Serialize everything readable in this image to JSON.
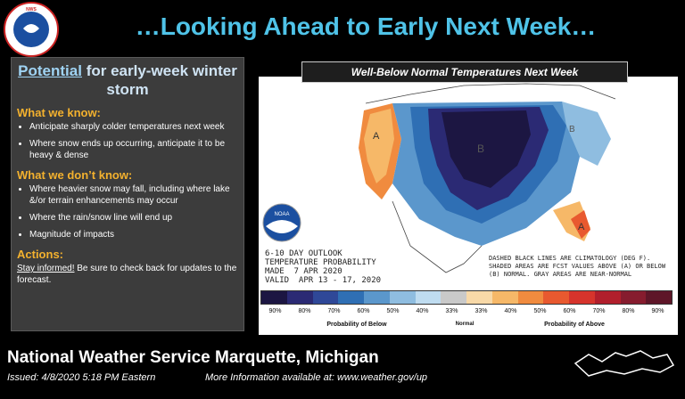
{
  "header": {
    "title": "…Looking Ahead to Early Next Week…"
  },
  "left_panel": {
    "title_underlined": "Potential",
    "title_rest": " for early-week winter storm",
    "know_heading": "What we know:",
    "know_items": [
      "Anticipate sharply colder temperatures next week",
      "Where snow ends up occurring, anticipate it to be heavy & dense"
    ],
    "dont_know_heading": "What we don’t know:",
    "dont_know_items": [
      "Where heavier snow may fall, including where lake &/or terrain enhancements may occur",
      "Where the rain/snow line will end up",
      "Magnitude of impacts"
    ],
    "actions_heading": "Actions:",
    "actions_link": "Stay informed!",
    "actions_text": " Be sure to check back for updates to the forecast."
  },
  "map": {
    "header": "Well-Below Normal Temperatures Next Week",
    "outlook_lines": [
      "6-10 DAY OUTLOOK",
      "TEMPERATURE PROBABILITY",
      "MADE  7 APR 2020",
      "VALID  APR 13 - 17, 2020"
    ],
    "legend_note": "Dashed black lines are climatology (deg F). Shaded areas are fcst values above (A) or below (B) normal. Gray areas are near-normal",
    "region_labels": [
      "B",
      "A",
      "A",
      "B"
    ],
    "colorbar_colors": [
      "#1c1642",
      "#2b2a74",
      "#2f4898",
      "#2f6fb4",
      "#5b97cc",
      "#8fbde0",
      "#bfdcf0",
      "#c9c9c9",
      "#f8d9a8",
      "#f6b868",
      "#f08b3f",
      "#e8592f",
      "#d6342c",
      "#b11f2c",
      "#861c2e",
      "#5e1628"
    ],
    "colorbar_labels": [
      "90%",
      "80%",
      "70%",
      "60%",
      "50%",
      "40%",
      "33%",
      "33%",
      "40%",
      "50%",
      "60%",
      "70%",
      "80%",
      "90%"
    ],
    "prob_below": "Probability of Below",
    "normal": "Normal",
    "prob_above": "Probability of Above"
  },
  "footer": {
    "office": "National Weather Service Marquette, Michigan",
    "issued": "Issued:  4/8/2020 5:18 PM Eastern",
    "more_info": "More Information available at: www.weather.gov/up"
  },
  "logo_text": "NATIONAL WEATHER SERVICE",
  "noaa_text": "NOAA"
}
